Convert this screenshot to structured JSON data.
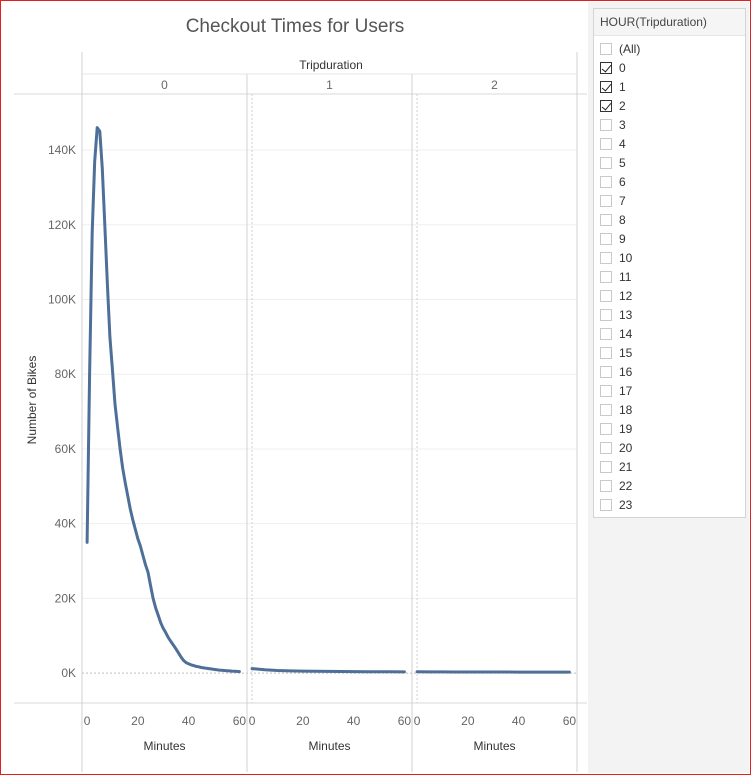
{
  "title": "Checkout Times for Users",
  "filter": {
    "title": "HOUR(Tripduration)",
    "options": [
      {
        "label": "(All)",
        "checked": false
      },
      {
        "label": "0",
        "checked": true
      },
      {
        "label": "1",
        "checked": true
      },
      {
        "label": "2",
        "checked": true
      },
      {
        "label": "3",
        "checked": false
      },
      {
        "label": "4",
        "checked": false
      },
      {
        "label": "5",
        "checked": false
      },
      {
        "label": "6",
        "checked": false
      },
      {
        "label": "7",
        "checked": false
      },
      {
        "label": "8",
        "checked": false
      },
      {
        "label": "9",
        "checked": false
      },
      {
        "label": "10",
        "checked": false
      },
      {
        "label": "11",
        "checked": false
      },
      {
        "label": "12",
        "checked": false
      },
      {
        "label": "13",
        "checked": false
      },
      {
        "label": "14",
        "checked": false
      },
      {
        "label": "15",
        "checked": false
      },
      {
        "label": "16",
        "checked": false
      },
      {
        "label": "17",
        "checked": false
      },
      {
        "label": "18",
        "checked": false
      },
      {
        "label": "19",
        "checked": false
      },
      {
        "label": "20",
        "checked": false
      },
      {
        "label": "21",
        "checked": false
      },
      {
        "label": "22",
        "checked": false
      },
      {
        "label": "23",
        "checked": false
      }
    ]
  },
  "chart_data": {
    "type": "line",
    "title": "Checkout Times for Users",
    "column_header": "Tripduration",
    "ylabel": "Number of Bikes",
    "xlabel": "Minutes",
    "ylim": [
      -8000,
      155000
    ],
    "yticks": [
      0,
      20000,
      40000,
      60000,
      80000,
      100000,
      120000,
      140000
    ],
    "ytick_labels": [
      "0K",
      "20K",
      "40K",
      "60K",
      "80K",
      "100K",
      "120K",
      "140K"
    ],
    "xlim": [
      -2,
      63
    ],
    "xticks": [
      0,
      20,
      40,
      60
    ],
    "panels": [
      {
        "label": "0",
        "x": [
          0,
          1,
          2,
          3,
          4,
          5,
          6,
          7,
          8,
          9,
          10,
          11,
          12,
          13,
          14,
          15,
          16,
          17,
          18,
          19,
          20,
          21,
          22,
          23,
          24,
          25,
          26,
          27,
          28,
          29,
          30,
          31,
          32,
          33,
          34,
          35,
          36,
          37,
          38,
          39,
          40,
          41,
          42,
          43,
          44,
          45,
          46,
          47,
          48,
          49,
          50,
          51,
          52,
          53,
          54,
          55,
          56,
          57,
          58,
          59,
          60
        ],
        "y": [
          35000,
          80000,
          118000,
          137000,
          146000,
          145000,
          135000,
          120000,
          104000,
          90000,
          81000,
          72000,
          66000,
          60000,
          55000,
          51000,
          47500,
          44000,
          41000,
          38500,
          36000,
          34000,
          31500,
          29000,
          27000,
          23500,
          20000,
          17500,
          15500,
          13500,
          12000,
          10800,
          9500,
          8500,
          7500,
          6500,
          5400,
          4300,
          3400,
          2800,
          2500,
          2200,
          2000,
          1800,
          1700,
          1500,
          1400,
          1300,
          1200,
          1100,
          1000,
          900,
          800,
          750,
          700,
          650,
          600,
          550,
          500,
          450,
          400
        ],
        "x_cut": 60
      },
      {
        "label": "1",
        "x": [
          0,
          5,
          10,
          15,
          20,
          25,
          30,
          35,
          40,
          45,
          50,
          55,
          60
        ],
        "y": [
          1200,
          900,
          700,
          600,
          550,
          500,
          450,
          420,
          400,
          380,
          360,
          340,
          320
        ]
      },
      {
        "label": "2",
        "x": [
          0,
          5,
          10,
          15,
          20,
          25,
          30,
          35,
          40,
          45,
          50,
          55,
          60
        ],
        "y": [
          350,
          330,
          320,
          310,
          300,
          300,
          290,
          290,
          280,
          280,
          270,
          270,
          260
        ]
      }
    ],
    "line_color": "#4e6f98",
    "grid": true,
    "legend": "none"
  }
}
